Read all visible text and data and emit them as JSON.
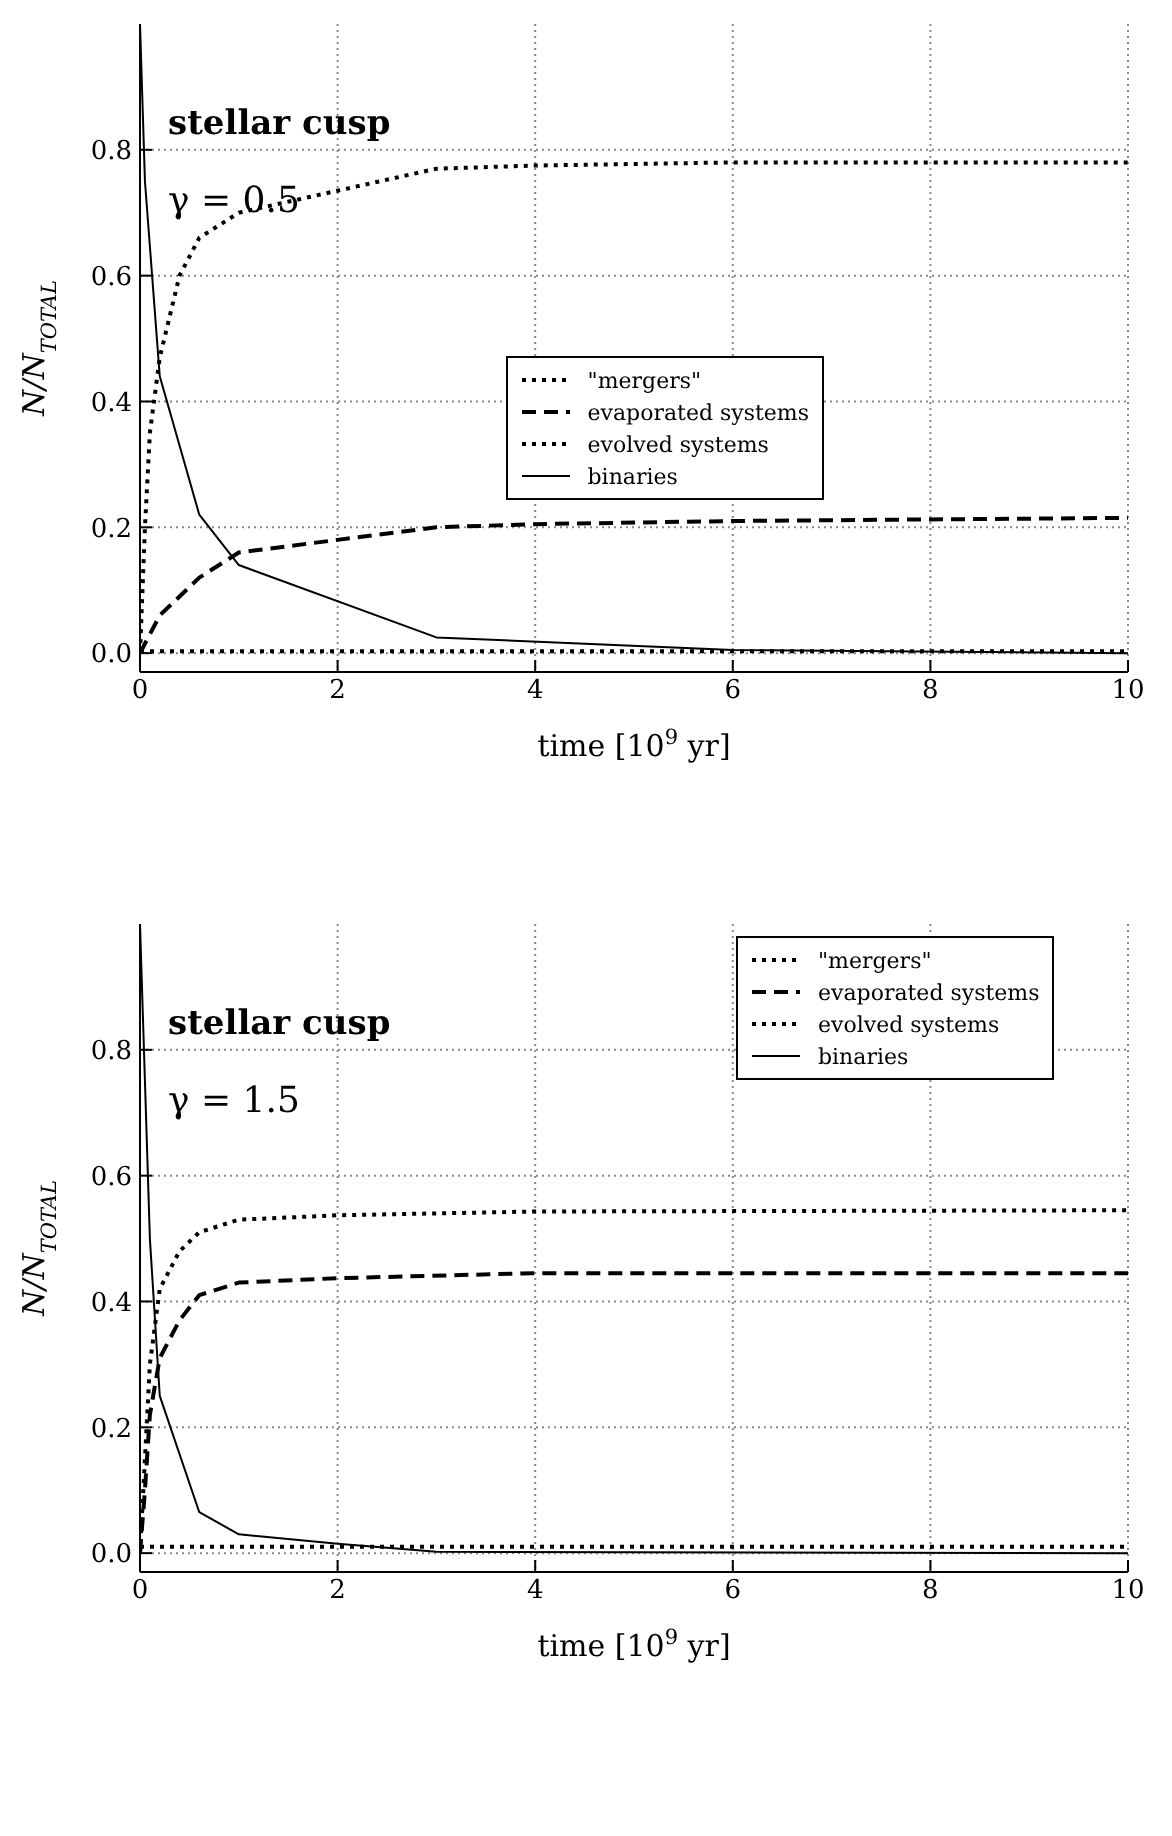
{
  "chart_data": [
    {
      "type": "line",
      "annotations": [
        "stellar cusp",
        "γ = 0.5"
      ],
      "xlabel": "time [10$^{9}$ yr]",
      "ylabel": "N/N$_{TOTAL}$",
      "xlim": [
        0,
        10
      ],
      "ylim": [
        -0.03,
        1.0
      ],
      "xticks": [
        0,
        2,
        4,
        6,
        8,
        10
      ],
      "yticks": [
        {
          "value": 0,
          "label": "0.0"
        },
        {
          "value": 0.2,
          "label": "0.2"
        },
        {
          "value": 0.4,
          "label": "0.4"
        },
        {
          "value": 0.6,
          "label": "0.6"
        },
        {
          "value": 0.8,
          "label": "0.8"
        }
      ],
      "grid": true,
      "legend": "right",
      "marker": "none",
      "series": [
        {
          "name": "\"mergers\"",
          "color": "#000000",
          "line_style": "dotted",
          "x": [
            0,
            2,
            4,
            6,
            8,
            10
          ],
          "values": [
            0.003,
            0.003,
            0.003,
            0.003,
            0.003,
            0.003
          ]
        },
        {
          "name": "evaporated systems",
          "color": "#000000",
          "line_style": "dashed",
          "x": [
            0,
            0.2,
            0.6,
            1,
            2,
            3,
            4,
            6,
            10
          ],
          "values": [
            0,
            0.06,
            0.12,
            0.16,
            0.18,
            0.2,
            0.205,
            0.21,
            0.215
          ]
        },
        {
          "name": "evolved systems",
          "color": "#000000",
          "line_style": "dotted",
          "x": [
            0,
            0.05,
            0.1,
            0.2,
            0.4,
            0.6,
            1,
            2,
            3,
            4,
            6,
            10
          ],
          "values": [
            0,
            0.2,
            0.35,
            0.47,
            0.6,
            0.66,
            0.7,
            0.735,
            0.77,
            0.775,
            0.78,
            0.78
          ]
        },
        {
          "name": "binaries",
          "color": "#000000",
          "line_style": "solid",
          "x": [
            0,
            0.05,
            0.2,
            0.6,
            1,
            3,
            6,
            10
          ],
          "values": [
            1.0,
            0.75,
            0.44,
            0.22,
            0.14,
            0.025,
            0.005,
            0
          ]
        }
      ]
    },
    {
      "type": "line",
      "annotations": [
        "stellar cusp",
        "γ = 1.5"
      ],
      "xlabel": "time [10$^{9}$ yr]",
      "ylabel": "N/N$_{TOTAL}$",
      "xlim": [
        0,
        10
      ],
      "ylim": [
        -0.03,
        1.0
      ],
      "xticks": [
        0,
        2,
        4,
        6,
        8,
        10
      ],
      "yticks": [
        {
          "value": 0,
          "label": "0.0"
        },
        {
          "value": 0.2,
          "label": "0.2"
        },
        {
          "value": 0.4,
          "label": "0.4"
        },
        {
          "value": 0.6,
          "label": "0.6"
        },
        {
          "value": 0.8,
          "label": "0.8"
        }
      ],
      "grid": true,
      "legend": "top right",
      "marker": "none",
      "series": [
        {
          "name": "\"mergers\"",
          "color": "#000000",
          "line_style": "dotted",
          "x": [
            0,
            2,
            4,
            6,
            8,
            10
          ],
          "values": [
            0.01,
            0.01,
            0.01,
            0.01,
            0.01,
            0.01
          ]
        },
        {
          "name": "evaporated systems",
          "color": "#000000",
          "line_style": "dashed",
          "x": [
            0,
            0.05,
            0.1,
            0.2,
            0.4,
            0.6,
            1,
            2,
            4,
            10
          ],
          "values": [
            0,
            0.1,
            0.22,
            0.31,
            0.37,
            0.41,
            0.43,
            0.437,
            0.445,
            0.445
          ]
        },
        {
          "name": "evolved systems",
          "color": "#000000",
          "line_style": "dotted",
          "x": [
            0,
            0.05,
            0.1,
            0.2,
            0.4,
            0.6,
            1,
            2,
            4,
            10
          ],
          "values": [
            0,
            0.15,
            0.3,
            0.42,
            0.48,
            0.51,
            0.53,
            0.537,
            0.543,
            0.545
          ]
        },
        {
          "name": "binaries",
          "color": "#000000",
          "line_style": "solid",
          "x": [
            0,
            0.1,
            0.2,
            0.6,
            1,
            2,
            3,
            10
          ],
          "values": [
            1.0,
            0.5,
            0.25,
            0.065,
            0.03,
            0.015,
            0.002,
            0
          ]
        }
      ]
    }
  ]
}
